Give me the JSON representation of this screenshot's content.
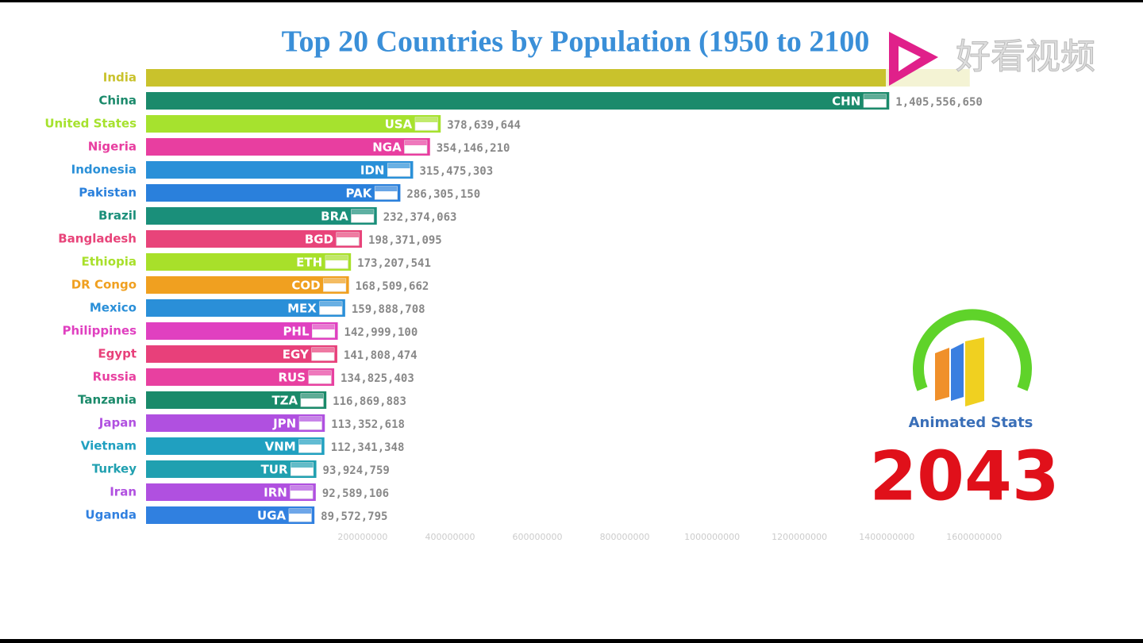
{
  "chart_data": {
    "type": "bar",
    "orientation": "horizontal",
    "title": "Top 20 Countries by Population (1950 to 2100",
    "year": 2043,
    "logo_text": "Animated Stats",
    "watermark": "好看视频",
    "categories": [
      "India",
      "China",
      "United States",
      "Nigeria",
      "Indonesia",
      "Pakistan",
      "Brazil",
      "Bangladesh",
      "Ethiopia",
      "DR Congo",
      "Mexico",
      "Philippines",
      "Egypt",
      "Russia",
      "Tanzania",
      "Japan",
      "Vietnam",
      "Turkey",
      "Iran",
      "Uganda"
    ],
    "codes": [
      null,
      "CHN",
      "USA",
      "NGA",
      "IDN",
      "PAK",
      "BRA",
      "BGD",
      "ETH",
      "COD",
      "MEX",
      "PHL",
      "EGY",
      "RUS",
      "TZA",
      "JPN",
      "VNM",
      "TUR",
      "IRN",
      "UGA"
    ],
    "values": [
      1590000000,
      1405556650,
      378639644,
      354146210,
      315475303,
      286305150,
      232374063,
      198371095,
      173207541,
      168509662,
      159888708,
      142999100,
      141808474,
      134825403,
      116869883,
      113352618,
      112341348,
      93924759,
      92589106,
      89572795
    ],
    "value_labels": [
      null,
      "1,405,556,650",
      "378,639,644",
      "354,146,210",
      "315,475,303",
      "286,305,150",
      "232,374,063",
      "198,371,095",
      "173,207,541",
      "168,509,662",
      "159,888,708",
      "142,999,100",
      "141,808,474",
      "134,825,403",
      "116,869,883",
      "113,352,618",
      "112,341,348",
      "93,924,759",
      "92,589,106",
      "89,572,795"
    ],
    "colors": [
      "#c9c22c",
      "#1b8a6b",
      "#a6e22e",
      "#e83ea0",
      "#2a90d8",
      "#2a80dc",
      "#1a8f7a",
      "#e8447a",
      "#a8e02a",
      "#f0a020",
      "#2a8fd8",
      "#e040c0",
      "#e8407a",
      "#e840a0",
      "#1a8a6a",
      "#b050e0",
      "#20a0c0",
      "#20a0b0",
      "#b050e0",
      "#3080e0"
    ],
    "xlim": [
      -296000000,
      1714000000
    ],
    "xticks": [
      200000000,
      400000000,
      600000000,
      800000000,
      1000000000,
      1200000000,
      1400000000,
      1600000000
    ]
  }
}
